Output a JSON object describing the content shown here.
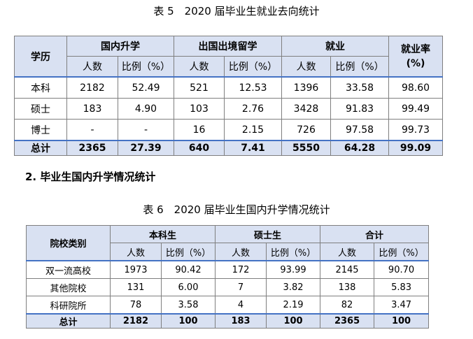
{
  "table5": {
    "caption": "表 5　2020 届毕业生就业去向统计",
    "headers": {
      "degree": "学历",
      "group1": "国内升学",
      "group2": "出国出境留学",
      "group3": "就业",
      "rate": "就业率\n(%)",
      "count": "人数",
      "ratio": "比例（%）"
    },
    "rows": [
      [
        "本科",
        "2182",
        "52.49",
        "521",
        "12.53",
        "1396",
        "33.58",
        "98.60"
      ],
      [
        "硕士",
        "183",
        "4.90",
        "103",
        "2.76",
        "3428",
        "91.83",
        "99.49"
      ],
      [
        "博士",
        "-",
        "-",
        "16",
        "2.15",
        "726",
        "97.58",
        "99.73"
      ]
    ],
    "total": [
      "总计",
      "2365",
      "27.39",
      "640",
      "7.41",
      "5550",
      "64.28",
      "99.09"
    ]
  },
  "section_heading": "2. 毕业生国内升学情况统计",
  "table6": {
    "caption": "表 6　2020 届毕业生国内升学情况统计",
    "headers": {
      "type": "院校类别",
      "group1": "本科生",
      "group2": "硕士生",
      "group3": "合计",
      "count": "人数",
      "ratio": "比例（%）"
    },
    "rows": [
      [
        "双一流高校",
        "1973",
        "90.42",
        "172",
        "93.99",
        "2145",
        "90.70"
      ],
      [
        "其他院校",
        "131",
        "6.00",
        "7",
        "3.82",
        "138",
        "5.83"
      ],
      [
        "科研院所",
        "78",
        "3.58",
        "4",
        "2.19",
        "82",
        "3.47"
      ]
    ],
    "total": [
      "总计",
      "2182",
      "100",
      "183",
      "100",
      "2365",
      "100"
    ]
  },
  "colors": {
    "header_fill": "#d9e1f2",
    "border": "#7f7f7f",
    "accent_line": "#4472c4"
  }
}
